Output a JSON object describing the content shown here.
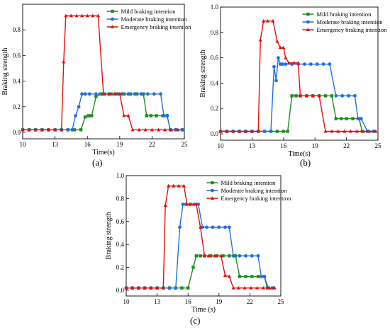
{
  "colors": {
    "mild": "#1e8c1e",
    "moderate": "#1f6fe0",
    "emergency": "#e01010"
  },
  "chart_data": [
    {
      "type": "line",
      "panel_label": "(a)",
      "xlabel": "Time(s)",
      "ylabel": "Braking strength",
      "xlim": [
        10,
        25
      ],
      "ylim": [
        -0.05,
        1.0
      ],
      "xticks": [
        10,
        13,
        16,
        19,
        22,
        25
      ],
      "yticks": [
        0.0,
        0.2,
        0.4,
        0.6,
        0.8
      ],
      "legend_position": "top-right",
      "series": [
        {
          "name": "Mild braking intention",
          "color": "#1e8c1e",
          "marker": "square",
          "x": [
            10,
            10.6,
            11.2,
            11.8,
            12.4,
            13,
            13.6,
            14.2,
            14.8,
            15.4,
            15.8,
            16.1,
            16.4,
            16.8,
            17.2,
            17.6,
            18.2,
            18.8,
            19.4,
            20,
            20.6,
            21.2,
            21.5,
            21.9,
            22.4,
            23,
            23.4,
            23.7,
            24.2,
            24.8
          ],
          "y": [
            0.02,
            0.02,
            0.02,
            0.02,
            0.02,
            0.02,
            0.02,
            0.02,
            0.02,
            0.02,
            0.12,
            0.13,
            0.13,
            0.28,
            0.3,
            0.3,
            0.3,
            0.3,
            0.3,
            0.3,
            0.3,
            0.3,
            0.13,
            0.13,
            0.13,
            0.13,
            0.13,
            0.02,
            0.02,
            0.02
          ]
        },
        {
          "name": "Moderate braking intention",
          "color": "#1f6fe0",
          "marker": "circle",
          "x": [
            10,
            10.6,
            11.2,
            11.8,
            12.4,
            13,
            13.6,
            14.2,
            14.6,
            14.9,
            15.2,
            15.5,
            15.8,
            16.2,
            16.8,
            17.4,
            18,
            18.6,
            19.2,
            19.8,
            20.4,
            21,
            21.6,
            22.2,
            22.8,
            23.1,
            23.4,
            23.7,
            24.2,
            24.8
          ],
          "y": [
            0.02,
            0.02,
            0.02,
            0.02,
            0.02,
            0.02,
            0.02,
            0.02,
            0.02,
            0.13,
            0.2,
            0.3,
            0.3,
            0.3,
            0.3,
            0.3,
            0.3,
            0.3,
            0.3,
            0.3,
            0.3,
            0.3,
            0.3,
            0.3,
            0.3,
            0.13,
            0.13,
            0.02,
            0.02,
            0.02
          ]
        },
        {
          "name": "Emergency braking intention",
          "color": "#e01010",
          "marker": "triangle",
          "x": [
            10,
            10.6,
            11.2,
            11.8,
            12.4,
            13,
            13.6,
            13.8,
            14,
            14.5,
            15,
            15.5,
            16,
            16.5,
            17,
            17.5,
            18,
            18.5,
            19,
            19.4,
            19.8,
            20.2,
            20.8,
            21.4,
            22,
            22.6,
            23.2,
            23.8,
            24.4
          ],
          "y": [
            0.02,
            0.02,
            0.02,
            0.02,
            0.02,
            0.02,
            0.02,
            0.55,
            0.91,
            0.91,
            0.91,
            0.91,
            0.91,
            0.91,
            0.91,
            0.3,
            0.3,
            0.3,
            0.3,
            0.13,
            0.13,
            0.02,
            0.02,
            0.02,
            0.02,
            0.02,
            0.02,
            0.02,
            0.02
          ]
        }
      ]
    },
    {
      "type": "line",
      "panel_label": "(b)",
      "xlabel": "Time(s)",
      "ylabel": "Braking strength",
      "xlim": [
        10,
        25
      ],
      "ylim": [
        -0.05,
        1.0
      ],
      "xticks": [
        10,
        13,
        16,
        19,
        22,
        25
      ],
      "yticks": [
        0.0,
        0.2,
        0.4,
        0.6,
        0.8,
        1.0
      ],
      "legend_position": "top-right",
      "series": [
        {
          "name": "Mild braking intention",
          "color": "#1e8c1e",
          "marker": "square",
          "x": [
            10,
            10.6,
            11.2,
            11.8,
            12.4,
            13,
            13.6,
            14.2,
            14.8,
            15.4,
            16,
            16.4,
            16.8,
            17.2,
            17.6,
            18.2,
            18.8,
            19.4,
            20,
            20.6,
            21,
            21.5,
            22,
            22.6,
            23.2,
            23.5,
            24,
            24.6
          ],
          "y": [
            0.02,
            0.02,
            0.02,
            0.02,
            0.02,
            0.02,
            0.02,
            0.02,
            0.02,
            0.02,
            0.02,
            0.02,
            0.3,
            0.3,
            0.3,
            0.3,
            0.3,
            0.3,
            0.3,
            0.3,
            0.12,
            0.12,
            0.12,
            0.12,
            0.12,
            0.02,
            0.02,
            0.02
          ]
        },
        {
          "name": "Moderate braking intention",
          "color": "#1f6fe0",
          "marker": "circle",
          "x": [
            10,
            10.6,
            11.2,
            11.8,
            12.4,
            13,
            13.6,
            14.2,
            14.8,
            15.1,
            15.3,
            15.5,
            15.7,
            15.9,
            16.2,
            16.8,
            17.4,
            18,
            18.6,
            19.2,
            19.8,
            20.4,
            21,
            21.6,
            22.2,
            22.8,
            23.1,
            23.4,
            24,
            24.6
          ],
          "y": [
            0.02,
            0.02,
            0.02,
            0.02,
            0.02,
            0.02,
            0.02,
            0.02,
            0.02,
            0.53,
            0.42,
            0.6,
            0.55,
            0.55,
            0.55,
            0.55,
            0.55,
            0.55,
            0.55,
            0.55,
            0.55,
            0.55,
            0.3,
            0.3,
            0.3,
            0.3,
            0.12,
            0.12,
            0.02,
            0.02
          ]
        },
        {
          "name": "Emergency braking intention",
          "color": "#e01010",
          "marker": "triangle",
          "x": [
            10,
            10.6,
            11.2,
            11.8,
            12.4,
            13,
            13.6,
            13.8,
            14.1,
            14.5,
            15,
            15.4,
            15.7,
            16,
            16.2,
            16.5,
            17,
            17.4,
            17.6,
            18.2,
            18.8,
            19.4,
            20,
            20.6,
            21.2,
            21.8,
            22.4,
            23,
            23.6,
            24.2,
            24.8
          ],
          "y": [
            0.02,
            0.02,
            0.02,
            0.02,
            0.02,
            0.02,
            0.02,
            0.74,
            0.89,
            0.89,
            0.89,
            0.73,
            0.68,
            0.68,
            0.6,
            0.56,
            0.56,
            0.56,
            0.3,
            0.3,
            0.3,
            0.3,
            0.02,
            0.02,
            0.02,
            0.02,
            0.02,
            0.02,
            0.02,
            0.02,
            0.02
          ]
        }
      ]
    },
    {
      "type": "line",
      "panel_label": "(c)",
      "xlabel": "Time (s)",
      "ylabel": "Braking strength",
      "xlim": [
        10,
        25
      ],
      "ylim": [
        -0.05,
        1.0
      ],
      "xticks": [
        10,
        13,
        16,
        19,
        22,
        25
      ],
      "yticks": [
        0.0,
        0.2,
        0.4,
        0.6,
        0.8,
        1.0
      ],
      "legend_position": "top-right",
      "series": [
        {
          "name": "Mild braking intention",
          "color": "#1e8c1e",
          "marker": "square",
          "x": [
            10,
            10.6,
            11.2,
            11.8,
            12.4,
            13,
            13.6,
            14.2,
            14.8,
            15.4,
            16,
            16.5,
            16.8,
            17.2,
            17.6,
            18.2,
            18.8,
            19.4,
            20,
            20.6,
            21,
            21.6,
            22.2,
            22.8,
            23.4,
            23.7,
            24.2
          ],
          "y": [
            0.02,
            0.02,
            0.02,
            0.02,
            0.02,
            0.02,
            0.02,
            0.02,
            0.02,
            0.02,
            0.02,
            0.2,
            0.3,
            0.3,
            0.3,
            0.3,
            0.3,
            0.3,
            0.3,
            0.3,
            0.12,
            0.12,
            0.12,
            0.12,
            0.12,
            0.02,
            0.02
          ]
        },
        {
          "name": "Moderate braking intention",
          "color": "#1f6fe0",
          "marker": "circle",
          "x": [
            10,
            10.6,
            11.2,
            11.8,
            12.4,
            13,
            13.6,
            14.2,
            14.8,
            15.2,
            15.5,
            15.8,
            16.2,
            16.6,
            17,
            17.4,
            17.8,
            18.4,
            19,
            19.6,
            20,
            20.4,
            21,
            21.6,
            22.2,
            22.8,
            23.1,
            23.4,
            23.8,
            24.2
          ],
          "y": [
            0.02,
            0.02,
            0.02,
            0.02,
            0.02,
            0.02,
            0.02,
            0.02,
            0.02,
            0.55,
            0.75,
            0.75,
            0.75,
            0.75,
            0.75,
            0.55,
            0.55,
            0.55,
            0.55,
            0.55,
            0.55,
            0.3,
            0.3,
            0.3,
            0.3,
            0.3,
            0.12,
            0.12,
            0.02,
            0.02
          ]
        },
        {
          "name": "Emergency braking intention",
          "color": "#e01010",
          "marker": "triangle",
          "x": [
            10,
            10.6,
            11.2,
            11.8,
            12.4,
            13,
            13.6,
            13.8,
            14.1,
            14.6,
            15.1,
            15.6,
            15.9,
            16.3,
            16.8,
            17.2,
            17.6,
            18,
            18.6,
            19.2,
            19.6,
            20,
            20.4,
            20.9,
            21.5,
            22.1,
            22.7,
            23.3,
            23.9,
            24.4
          ],
          "y": [
            0.02,
            0.02,
            0.02,
            0.02,
            0.02,
            0.02,
            0.02,
            0.74,
            0.91,
            0.91,
            0.91,
            0.91,
            0.75,
            0.75,
            0.75,
            0.55,
            0.3,
            0.3,
            0.3,
            0.3,
            0.13,
            0.12,
            0.02,
            0.02,
            0.02,
            0.02,
            0.02,
            0.02,
            0.02,
            0.02
          ]
        }
      ]
    }
  ]
}
